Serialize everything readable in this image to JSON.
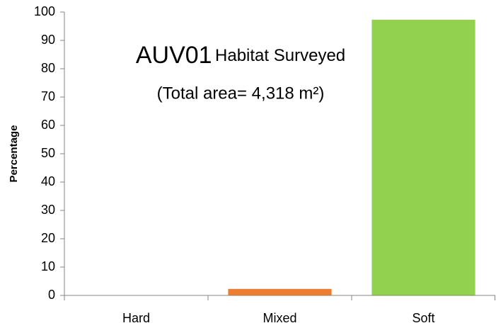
{
  "chart_data": {
    "type": "bar",
    "title": [
      "AUV01",
      "Habitat Surveyed"
    ],
    "subtitle": "(Total area= 4,318 m²)",
    "y_label": "Percentage",
    "categories": [
      "Hard",
      "Mixed",
      "Soft"
    ],
    "values": [
      0.1,
      2.3,
      97.3
    ],
    "colors": [
      "#4472c4",
      "#ed7d31",
      "#92d050"
    ],
    "ylim": [
      0,
      100
    ],
    "yticks": [
      0,
      10,
      20,
      30,
      40,
      50,
      60,
      70,
      80,
      90,
      100
    ],
    "grid": false
  }
}
